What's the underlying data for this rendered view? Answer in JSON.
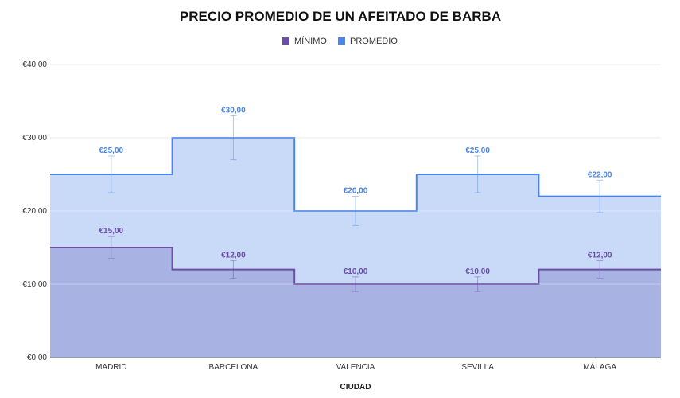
{
  "chart_data": {
    "type": "area",
    "step": true,
    "title": "PRECIO PROMEDIO DE UN AFEITADO DE BARBA",
    "xlabel": "CIUDAD",
    "ylabel": "",
    "categories": [
      "MADRID",
      "BARCELONA",
      "VALENCIA",
      "SEVILLA",
      "MÁLAGA"
    ],
    "ylim": [
      0,
      40
    ],
    "yticks": [
      "€0,00",
      "€10,00",
      "€20,00",
      "€30,00",
      "€40,00"
    ],
    "ytick_values": [
      0,
      10,
      20,
      30,
      40
    ],
    "grid": true,
    "legend_position": "top-center",
    "series": [
      {
        "name": "MÍNIMO",
        "color": "#6a4ea8",
        "fill": "#a9b3e3",
        "values": [
          15,
          12,
          10,
          10,
          12
        ],
        "labels": [
          "€15,00",
          "€12,00",
          "€10,00",
          "€10,00",
          "€12,00"
        ],
        "error_low": [
          13.5,
          10.8,
          9.0,
          9.0,
          10.8
        ],
        "error_high": [
          16.5,
          13.2,
          11.0,
          11.0,
          13.2
        ]
      },
      {
        "name": "PROMEDIO",
        "color": "#4a86e8",
        "fill": "#c9daf8",
        "values": [
          25,
          30,
          20,
          25,
          22
        ],
        "labels": [
          "€25,00",
          "€30,00",
          "€20,00",
          "€25,00",
          "€22,00"
        ],
        "error_low": [
          22.5,
          27.0,
          18.0,
          22.5,
          19.8
        ],
        "error_high": [
          27.5,
          33.0,
          22.0,
          27.5,
          24.2
        ]
      }
    ]
  }
}
